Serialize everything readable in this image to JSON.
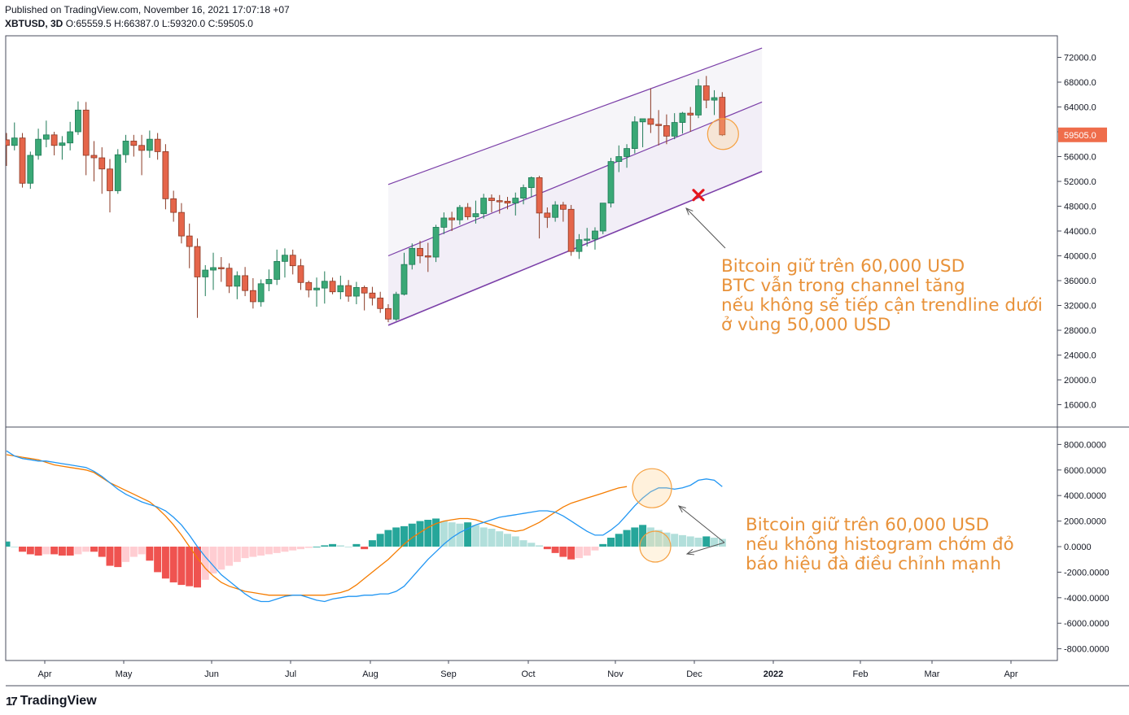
{
  "header": {
    "published": "Published on TradingView.com, November 16, 2021 17:07:18 +07",
    "symbol": "XBTUSD, 3D",
    "o_label": "O:",
    "o": "65559.5",
    "h_label": "H:",
    "h": "66387.0",
    "l_label": "L:",
    "l": "59320.0",
    "c_label": "C:",
    "c": "59505.0"
  },
  "footer": {
    "brand": "TradingView",
    "logo": "17"
  },
  "annotations": {
    "price": [
      "Bitcoin giữ trên 60,000 USD",
      "BTC vẫn trong channel tăng",
      "nếu không sẽ tiếp cận trendline dưới",
      "ở vùng 50,000 USD"
    ],
    "macd": [
      "Bitcoin giữ trên 60,000 USD",
      "nếu không histogram chớm đỏ",
      "báo hiệu đà điều chỉnh mạnh"
    ]
  },
  "colors": {
    "up": "#26a69a",
    "down": "#ef5350",
    "up_light": "#b2dfdb",
    "down_light": "#ffcdd2",
    "macd": "#2196f3",
    "signal": "#f57c00",
    "channel": "#7b3fa8",
    "annotation": "#e8923a",
    "last_price_bg": "#ef6d4b"
  },
  "chart_data": {
    "type": "candlestick",
    "symbol": "XBTUSD",
    "timeframe": "3D",
    "price_axis": {
      "ticks": [
        16000,
        20000,
        24000,
        28000,
        32000,
        36000,
        40000,
        44000,
        48000,
        52000,
        56000,
        60000,
        64000,
        68000,
        72000
      ],
      "tick_labels": [
        "16000.0",
        "20000.0",
        "24000.0",
        "28000.0",
        "32000.0",
        "36000.0",
        "40000.0",
        "44000.0",
        "48000.0",
        "52000.0",
        "56000.0",
        "60000.0",
        "64000.0",
        "68000.0",
        "72000.0"
      ],
      "last_price": 59505,
      "last_price_label": "59505.0"
    },
    "time_axis": [
      "Apr",
      "May",
      "Jun",
      "Jul",
      "Aug",
      "Sep",
      "Oct",
      "Nov",
      "Dec",
      "2022",
      "Feb",
      "Mar",
      "Apr"
    ],
    "candles": [
      [
        58700,
        59800,
        54500,
        57800
      ],
      [
        57800,
        61500,
        57000,
        59000
      ],
      [
        59000,
        59800,
        51000,
        51700
      ],
      [
        51700,
        56800,
        50800,
        56200
      ],
      [
        56200,
        60500,
        55500,
        58800
      ],
      [
        58800,
        61800,
        57500,
        59500
      ],
      [
        59500,
        60000,
        56200,
        57800
      ],
      [
        57800,
        59300,
        55500,
        58200
      ],
      [
        58200,
        61600,
        57000,
        60000
      ],
      [
        60000,
        64900,
        59500,
        63500
      ],
      [
        63500,
        64800,
        53000,
        56200
      ],
      [
        56200,
        58500,
        52000,
        55800
      ],
      [
        55800,
        57500,
        50000,
        54000
      ],
      [
        54000,
        55600,
        47000,
        50500
      ],
      [
        50500,
        57200,
        50000,
        56300
      ],
      [
        56300,
        59500,
        55000,
        58500
      ],
      [
        58500,
        59500,
        56000,
        57800
      ],
      [
        57800,
        59500,
        53000,
        57000
      ],
      [
        57000,
        60200,
        55800,
        58800
      ],
      [
        58800,
        59800,
        55500,
        56800
      ],
      [
        56800,
        58000,
        47500,
        49200
      ],
      [
        49200,
        50500,
        45500,
        47000
      ],
      [
        47000,
        48500,
        42000,
        43200
      ],
      [
        43200,
        45200,
        38000,
        41500
      ],
      [
        41500,
        42800,
        30000,
        36600
      ],
      [
        36600,
        38500,
        33500,
        37700
      ],
      [
        37700,
        40500,
        34500,
        38100
      ],
      [
        38100,
        39800,
        35800,
        38000
      ],
      [
        38000,
        38800,
        34000,
        35100
      ],
      [
        35100,
        37500,
        33000,
        36800
      ],
      [
        36800,
        38200,
        33500,
        34400
      ],
      [
        34400,
        36400,
        31500,
        32600
      ],
      [
        32600,
        36200,
        31800,
        35500
      ],
      [
        35500,
        37800,
        34300,
        36200
      ],
      [
        36200,
        41000,
        35300,
        39100
      ],
      [
        39100,
        41200,
        36500,
        40100
      ],
      [
        40100,
        41000,
        37000,
        38400
      ],
      [
        38400,
        39500,
        34500,
        35700
      ],
      [
        35700,
        36000,
        33300,
        34500
      ],
      [
        34500,
        36500,
        31800,
        34800
      ],
      [
        34800,
        37500,
        32300,
        35900
      ],
      [
        35900,
        36500,
        33800,
        34200
      ],
      [
        34200,
        36800,
        33000,
        35200
      ],
      [
        35200,
        36100,
        32600,
        33500
      ],
      [
        33500,
        35800,
        32200,
        34900
      ],
      [
        34900,
        35200,
        31200,
        34000
      ],
      [
        34000,
        35000,
        32000,
        33200
      ],
      [
        33200,
        34200,
        30800,
        31500
      ],
      [
        31500,
        32200,
        29300,
        29800
      ],
      [
        29800,
        34200,
        29500,
        33800
      ],
      [
        33800,
        40500,
        33600,
        38600
      ],
      [
        38600,
        42000,
        37800,
        41200
      ],
      [
        41200,
        42400,
        38800,
        40000
      ],
      [
        40000,
        42100,
        37400,
        39800
      ],
      [
        39800,
        45000,
        39000,
        44600
      ],
      [
        44600,
        47000,
        43500,
        46100
      ],
      [
        46100,
        47100,
        44000,
        45800
      ],
      [
        45800,
        48200,
        45000,
        47800
      ],
      [
        47800,
        48500,
        45800,
        46300
      ],
      [
        46300,
        48900,
        45200,
        46800
      ],
      [
        46800,
        50000,
        46000,
        49300
      ],
      [
        49300,
        49900,
        47000,
        48900
      ],
      [
        48900,
        49800,
        46800,
        48800
      ],
      [
        48800,
        49500,
        47500,
        48500
      ],
      [
        48500,
        50200,
        46500,
        49300
      ],
      [
        49300,
        51500,
        48300,
        51000
      ],
      [
        51000,
        52800,
        49500,
        52600
      ],
      [
        52600,
        52900,
        42800,
        46900
      ],
      [
        46900,
        47800,
        44500,
        46200
      ],
      [
        46200,
        48800,
        45500,
        48200
      ],
      [
        48200,
        48700,
        45500,
        47500
      ],
      [
        47500,
        48200,
        40000,
        40700
      ],
      [
        40700,
        43500,
        39500,
        42600
      ],
      [
        42600,
        44500,
        41500,
        42700
      ],
      [
        42700,
        44600,
        41000,
        44000
      ],
      [
        44000,
        48500,
        43500,
        48500
      ],
      [
        48500,
        55800,
        47800,
        55200
      ],
      [
        55200,
        57800,
        53500,
        56000
      ],
      [
        56000,
        58000,
        54200,
        57300
      ],
      [
        57300,
        62500,
        56500,
        61600
      ],
      [
        61600,
        62000,
        57500,
        62100
      ],
      [
        62100,
        67000,
        59800,
        61200
      ],
      [
        61200,
        63500,
        57800,
        61000
      ],
      [
        61000,
        62800,
        58000,
        59300
      ],
      [
        59300,
        63000,
        58800,
        61500
      ],
      [
        61500,
        63200,
        59700,
        63000
      ],
      [
        63000,
        64000,
        60000,
        62700
      ],
      [
        62700,
        68500,
        62200,
        67400
      ],
      [
        67400,
        69000,
        63800,
        65100
      ],
      [
        65100,
        66700,
        62700,
        65500
      ],
      [
        65559.5,
        66387,
        59320,
        59505
      ]
    ],
    "channel": {
      "upper": [
        [
          48,
          51500
        ],
        [
          95,
          73500
        ]
      ],
      "middle": [
        [
          48,
          40000
        ],
        [
          95,
          64800
        ]
      ],
      "lower": [
        [
          48,
          28800
        ],
        [
          95,
          53600
        ]
      ]
    },
    "target_marker": {
      "index": 87,
      "price": 49800
    },
    "macd_axis": {
      "ticks": [
        -8000,
        -6000,
        -4000,
        -2000,
        0,
        2000,
        4000,
        6000,
        8000
      ],
      "tick_labels": [
        "-8000.0000",
        "-6000.0000",
        "-4000.0000",
        "-2000.0000",
        "0.0000",
        "2000.0000",
        "4000.0000",
        "6000.0000",
        "8000.0000"
      ]
    },
    "macd": [
      7500,
      7100,
      6900,
      6800,
      6700,
      6700,
      6600,
      6500,
      6400,
      6300,
      6200,
      5900,
      5500,
      5000,
      4500,
      4100,
      3800,
      3500,
      3300,
      3100,
      2800,
      2300,
      1700,
      900,
      0,
      -800,
      -1500,
      -2200,
      -2700,
      -3200,
      -3700,
      -4100,
      -4300,
      -4300,
      -4100,
      -3900,
      -3800,
      -3800,
      -4000,
      -4200,
      -4300,
      -4100,
      -4000,
      -3900,
      -3900,
      -3800,
      -3800,
      -3700,
      -3700,
      -3500,
      -3100,
      -2400,
      -1700,
      -1000,
      -400,
      200,
      700,
      1100,
      1400,
      1700,
      1900,
      2100,
      2300,
      2400,
      2500,
      2600,
      2700,
      2800,
      2800,
      2700,
      2400,
      2000,
      1600,
      1200,
      900,
      900,
      1300,
      1800,
      2500,
      3200,
      3800,
      4300,
      4600,
      4600,
      4500,
      4600,
      4800,
      5200,
      5300,
      5200,
      4700
    ],
    "signal": [
      7200,
      7100,
      7000,
      6900,
      6800,
      6600,
      6400,
      6300,
      6200,
      6100,
      6000,
      5800,
      5400,
      5000,
      4700,
      4400,
      4100,
      3800,
      3500,
      3000,
      2400,
      1700,
      900,
      0,
      -900,
      -1700,
      -2300,
      -2800,
      -3100,
      -3300,
      -3500,
      -3600,
      -3700,
      -3800,
      -3800,
      -3800,
      -3800,
      -3800,
      -3800,
      -3800,
      -3800,
      -3700,
      -3600,
      -3400,
      -3000,
      -2500,
      -2000,
      -1500,
      -1000,
      -400,
      200,
      700,
      1100,
      1500,
      1800,
      2000,
      2100,
      2200,
      2200,
      2100,
      1900,
      1700,
      1500,
      1300,
      1200,
      1300,
      1600,
      1900,
      2300,
      2700,
      3100,
      3400,
      3600,
      3800,
      4000,
      4200,
      4400,
      4600,
      4700
    ],
    "histogram": [
      400,
      0,
      -400,
      -600,
      -700,
      -600,
      -600,
      -700,
      -700,
      -600,
      -400,
      -400,
      -800,
      -1500,
      -1600,
      -1200,
      -800,
      -600,
      -1100,
      -2000,
      -2500,
      -2800,
      -3000,
      -3100,
      -3200,
      -2600,
      -2100,
      -1800,
      -1500,
      -1200,
      -900,
      -800,
      -700,
      -600,
      -500,
      -400,
      -300,
      -200,
      -100,
      0,
      100,
      200,
      100,
      0,
      200,
      -200,
      500,
      1000,
      1300,
      1500,
      1600,
      1800,
      2000,
      2100,
      2200,
      2000,
      1900,
      1800,
      1900,
      1700,
      1500,
      1400,
      1200,
      1000,
      800,
      500,
      300,
      100,
      -200,
      -500,
      -800,
      -1000,
      -900,
      -700,
      -300,
      200,
      700,
      1000,
      1300,
      1500,
      1700,
      1500,
      1300,
      1100,
      1000,
      900,
      800,
      700,
      800,
      700,
      600
    ]
  }
}
